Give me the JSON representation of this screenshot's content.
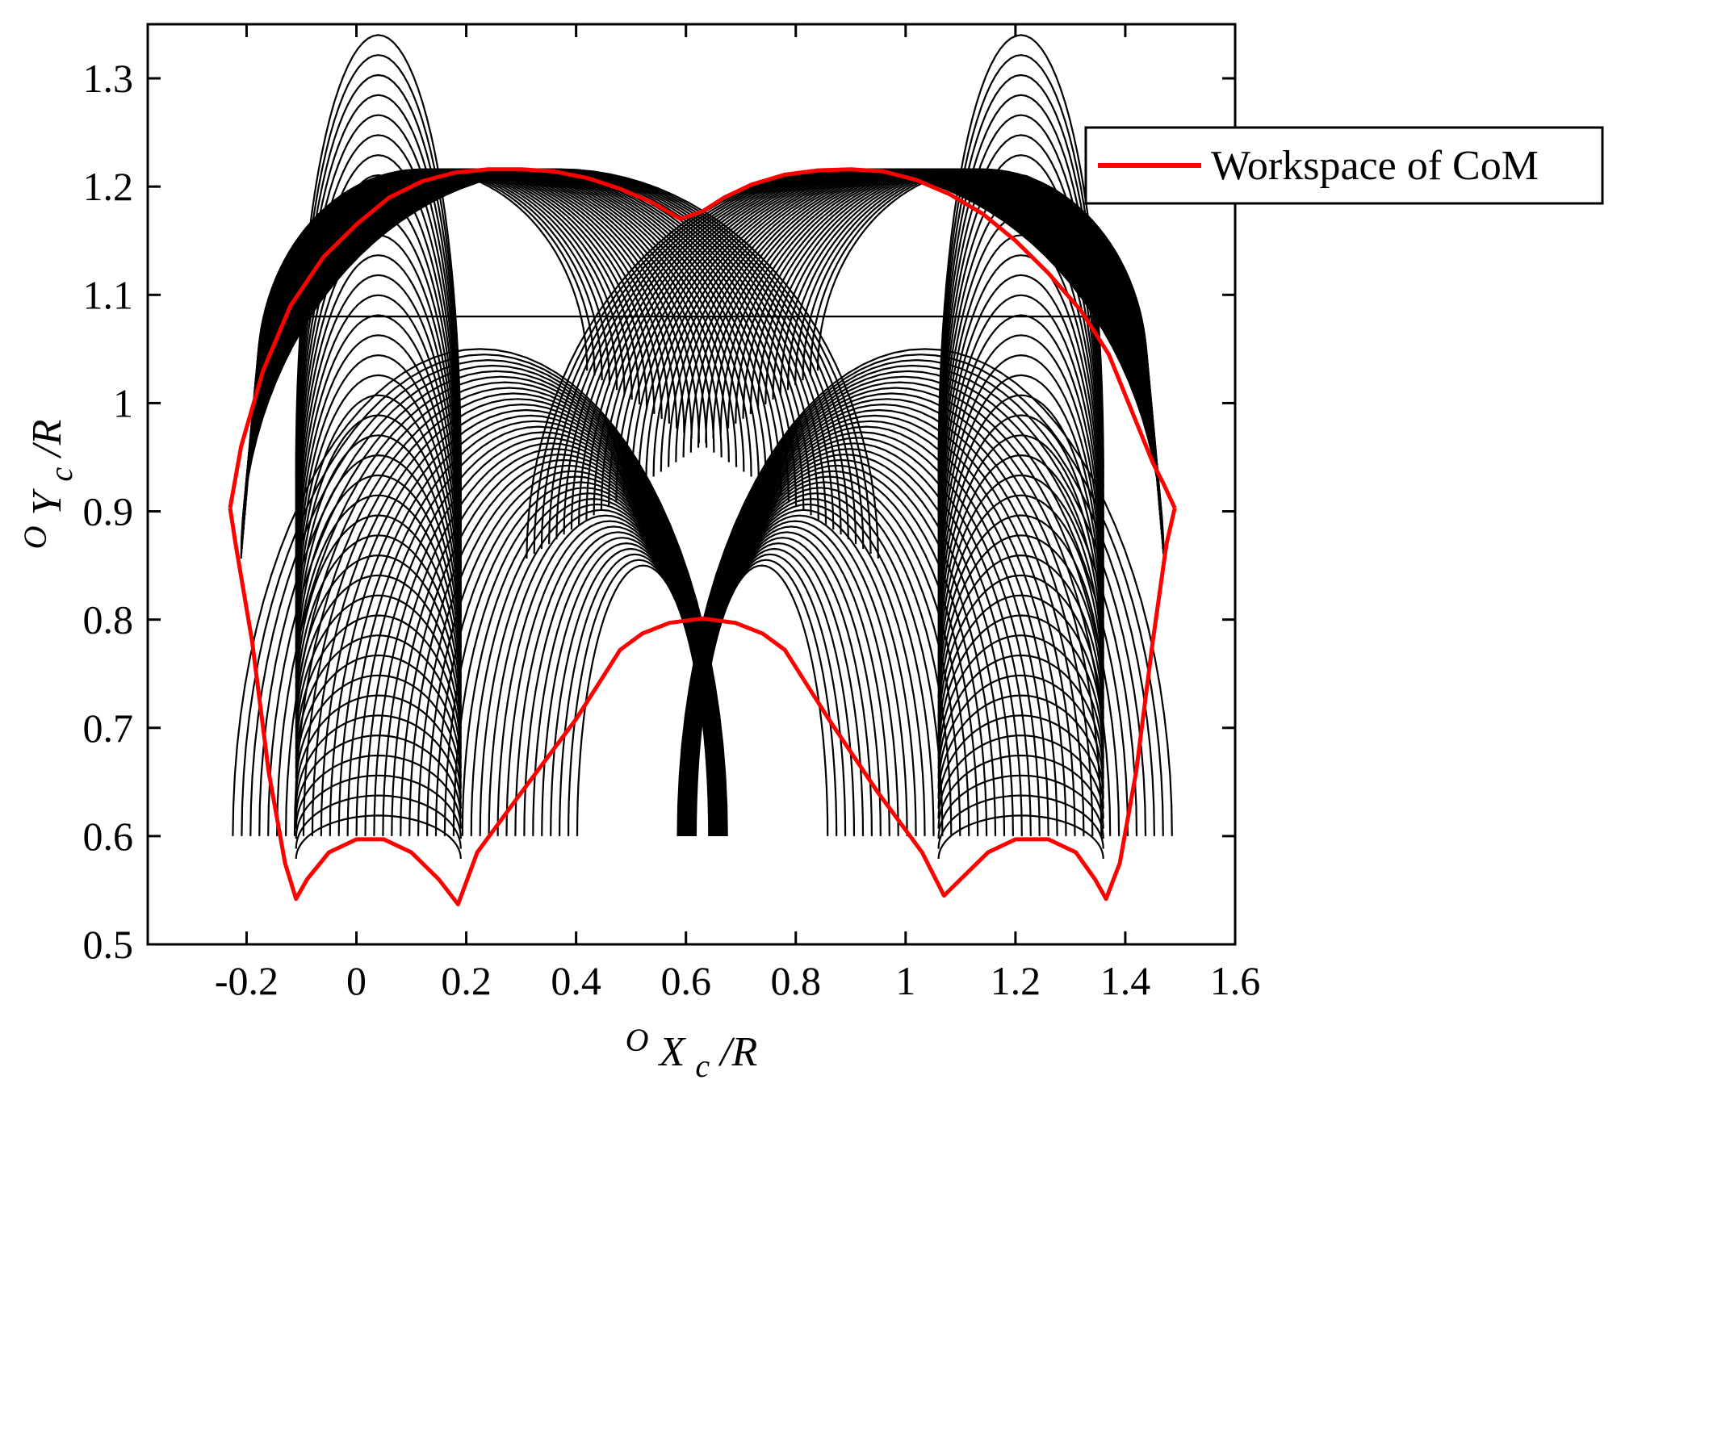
{
  "chart_data": {
    "type": "line",
    "title": "",
    "xlabel": {
      "superscript": "O",
      "main": "X",
      "subscript": "c",
      "suffix": "/R"
    },
    "ylabel": {
      "superscript": "O",
      "main": "Y",
      "subscript": "c",
      "suffix": "/R"
    },
    "xlim": [
      -0.38,
      1.6
    ],
    "ylim": [
      0.5,
      1.35
    ],
    "xticks": [
      -0.2,
      0,
      0.2,
      0.4,
      0.6,
      0.8,
      1,
      1.2,
      1.4,
      1.6
    ],
    "xtick_labels": [
      "-0.2",
      "0",
      "0.2",
      "0.4",
      "0.6",
      "0.8",
      "1",
      "1.2",
      "1.4",
      "1.6"
    ],
    "yticks": [
      0.5,
      0.6,
      0.7,
      0.8,
      0.9,
      1,
      1.1,
      1.2,
      1.3
    ],
    "ytick_labels": [
      "0.5",
      "0.6",
      "0.7",
      "0.8",
      "0.9",
      "1",
      "1.1",
      "1.2",
      "1.3"
    ],
    "grid": false,
    "legend": {
      "position": "top-right",
      "entries": [
        {
          "label": "Workspace of CoM",
          "color": "#ff0000"
        }
      ]
    },
    "colors": {
      "envelope": "#ff0000",
      "trajectories": "#000000"
    },
    "series": [
      {
        "name": "Workspace of CoM",
        "color": "#ff0000",
        "x": [
          -0.23,
          -0.22,
          -0.19,
          -0.16,
          -0.13,
          -0.11,
          -0.09,
          -0.05,
          0.0,
          0.05,
          0.1,
          0.15,
          0.185,
          0.22,
          0.3,
          0.4,
          0.48,
          0.52,
          0.57,
          0.63,
          0.69,
          0.74,
          0.78,
          0.86,
          0.95,
          1.03,
          1.07,
          1.1,
          1.15,
          1.2,
          1.26,
          1.31,
          1.345,
          1.365,
          1.39,
          1.42,
          1.45,
          1.475,
          1.49
        ],
        "y": [
          0.903,
          0.87,
          0.78,
          0.66,
          0.575,
          0.542,
          0.56,
          0.585,
          0.597,
          0.597,
          0.585,
          0.56,
          0.537,
          0.585,
          0.64,
          0.708,
          0.772,
          0.787,
          0.797,
          0.801,
          0.797,
          0.787,
          0.772,
          0.708,
          0.64,
          0.585,
          0.545,
          0.56,
          0.585,
          0.597,
          0.597,
          0.585,
          0.56,
          0.542,
          0.575,
          0.66,
          0.78,
          0.87,
          0.903
        ]
      },
      {
        "name": "Workspace of CoM",
        "color": "#ff0000",
        "x": [
          -0.23,
          -0.21,
          -0.17,
          -0.12,
          -0.06,
          0.0,
          0.06,
          0.12,
          0.18,
          0.24,
          0.3,
          0.36,
          0.42,
          0.48,
          0.54,
          0.59,
          0.63,
          0.67,
          0.72,
          0.78,
          0.84,
          0.9,
          0.96,
          1.02,
          1.08,
          1.14,
          1.2,
          1.26,
          1.32,
          1.37,
          1.41,
          1.45,
          1.47,
          1.49
        ],
        "y": [
          0.903,
          0.96,
          1.03,
          1.09,
          1.135,
          1.165,
          1.19,
          1.205,
          1.213,
          1.216,
          1.216,
          1.214,
          1.208,
          1.198,
          1.185,
          1.17,
          1.177,
          1.19,
          1.202,
          1.211,
          1.215,
          1.216,
          1.214,
          1.206,
          1.193,
          1.175,
          1.15,
          1.12,
          1.085,
          1.045,
          0.995,
          0.945,
          0.925,
          0.903
        ]
      }
    ]
  },
  "legend_label": "Workspace of CoM"
}
